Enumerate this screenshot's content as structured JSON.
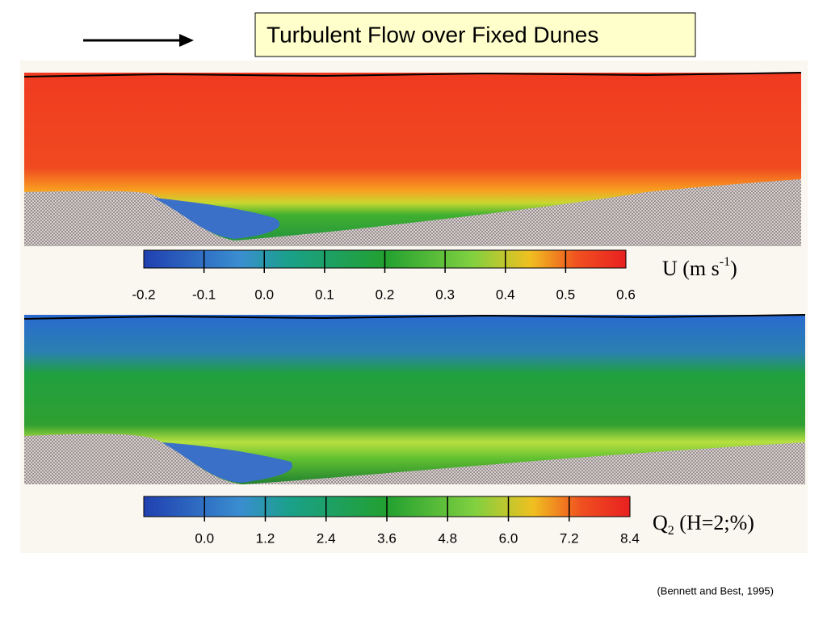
{
  "title": "Turbulent Flow over Fixed Dunes",
  "citation": "(Bennett and Best, 1995)",
  "panels": [
    {
      "colorbar_labels": [
        "-0.2",
        "-0.1",
        "0.0",
        "0.1",
        "0.2",
        "0.3",
        "0.4",
        "0.5",
        "0.6"
      ],
      "label": {
        "main": "U (m s",
        "sup": "-1",
        "end": ")"
      }
    },
    {
      "colorbar_labels": [
        "0.0",
        "1.2",
        "2.4",
        "3.6",
        "4.8",
        "6.0",
        "7.2",
        "8.4"
      ],
      "label": {
        "main": "Q",
        "sub": "2",
        "end": " (H=2;%)"
      }
    }
  ]
}
